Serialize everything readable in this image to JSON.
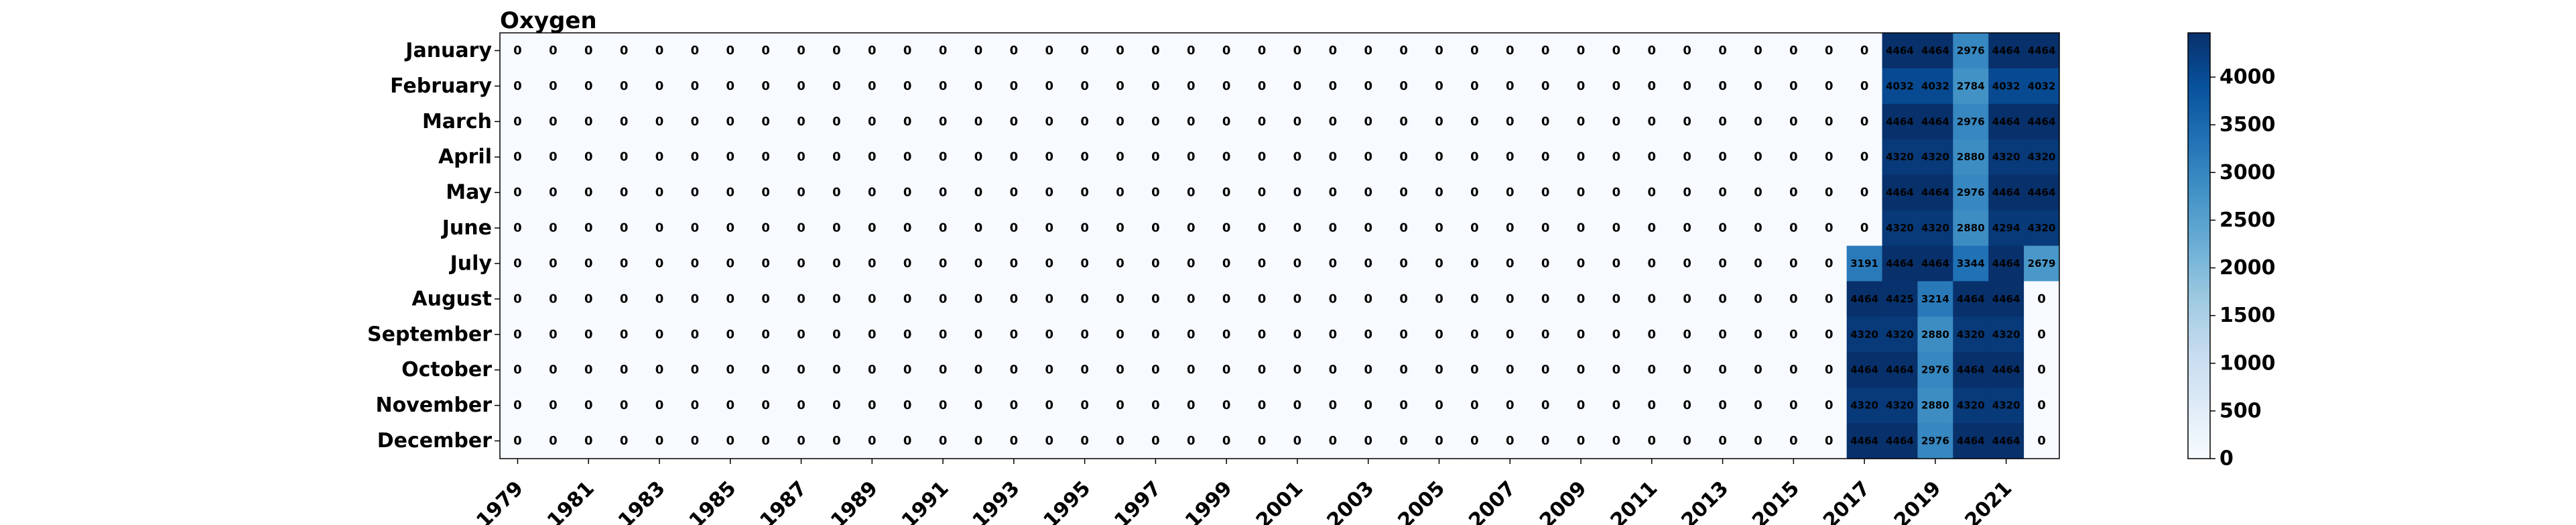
{
  "chart_data": {
    "type": "heatmap",
    "title": "Oxygen",
    "xlabel": "",
    "ylabel": "",
    "colormap": "Blues",
    "years": [
      1979,
      1980,
      1981,
      1982,
      1983,
      1984,
      1985,
      1986,
      1987,
      1988,
      1989,
      1990,
      1991,
      1992,
      1993,
      1994,
      1995,
      1996,
      1997,
      1998,
      1999,
      2000,
      2001,
      2002,
      2003,
      2004,
      2005,
      2006,
      2007,
      2008,
      2009,
      2010,
      2011,
      2012,
      2013,
      2014,
      2015,
      2016,
      2017,
      2018,
      2019,
      2020,
      2021,
      2022
    ],
    "x_tick_labels": [
      "1979",
      "1981",
      "1983",
      "1985",
      "1987",
      "1989",
      "1991",
      "1993",
      "1995",
      "1997",
      "1999",
      "2001",
      "2003",
      "2005",
      "2007",
      "2009",
      "2011",
      "2013",
      "2015",
      "2017",
      "2019",
      "2021"
    ],
    "months": [
      "January",
      "February",
      "March",
      "April",
      "May",
      "June",
      "July",
      "August",
      "September",
      "October",
      "November",
      "December"
    ],
    "values": [
      [
        0,
        0,
        0,
        0,
        0,
        0,
        0,
        0,
        0,
        0,
        0,
        0,
        0,
        0,
        0,
        0,
        0,
        0,
        0,
        0,
        0,
        0,
        0,
        0,
        0,
        0,
        0,
        0,
        0,
        0,
        0,
        0,
        0,
        0,
        0,
        0,
        0,
        0,
        0,
        4464,
        4464,
        2976,
        4464,
        4464
      ],
      [
        0,
        0,
        0,
        0,
        0,
        0,
        0,
        0,
        0,
        0,
        0,
        0,
        0,
        0,
        0,
        0,
        0,
        0,
        0,
        0,
        0,
        0,
        0,
        0,
        0,
        0,
        0,
        0,
        0,
        0,
        0,
        0,
        0,
        0,
        0,
        0,
        0,
        0,
        0,
        4032,
        4032,
        2784,
        4032,
        4032
      ],
      [
        0,
        0,
        0,
        0,
        0,
        0,
        0,
        0,
        0,
        0,
        0,
        0,
        0,
        0,
        0,
        0,
        0,
        0,
        0,
        0,
        0,
        0,
        0,
        0,
        0,
        0,
        0,
        0,
        0,
        0,
        0,
        0,
        0,
        0,
        0,
        0,
        0,
        0,
        0,
        4464,
        4464,
        2976,
        4464,
        4464
      ],
      [
        0,
        0,
        0,
        0,
        0,
        0,
        0,
        0,
        0,
        0,
        0,
        0,
        0,
        0,
        0,
        0,
        0,
        0,
        0,
        0,
        0,
        0,
        0,
        0,
        0,
        0,
        0,
        0,
        0,
        0,
        0,
        0,
        0,
        0,
        0,
        0,
        0,
        0,
        0,
        4320,
        4320,
        2880,
        4320,
        4320
      ],
      [
        0,
        0,
        0,
        0,
        0,
        0,
        0,
        0,
        0,
        0,
        0,
        0,
        0,
        0,
        0,
        0,
        0,
        0,
        0,
        0,
        0,
        0,
        0,
        0,
        0,
        0,
        0,
        0,
        0,
        0,
        0,
        0,
        0,
        0,
        0,
        0,
        0,
        0,
        0,
        4464,
        4464,
        2976,
        4464,
        4464
      ],
      [
        0,
        0,
        0,
        0,
        0,
        0,
        0,
        0,
        0,
        0,
        0,
        0,
        0,
        0,
        0,
        0,
        0,
        0,
        0,
        0,
        0,
        0,
        0,
        0,
        0,
        0,
        0,
        0,
        0,
        0,
        0,
        0,
        0,
        0,
        0,
        0,
        0,
        0,
        0,
        4320,
        4320,
        2880,
        4294,
        4320
      ],
      [
        0,
        0,
        0,
        0,
        0,
        0,
        0,
        0,
        0,
        0,
        0,
        0,
        0,
        0,
        0,
        0,
        0,
        0,
        0,
        0,
        0,
        0,
        0,
        0,
        0,
        0,
        0,
        0,
        0,
        0,
        0,
        0,
        0,
        0,
        0,
        0,
        0,
        0,
        3191,
        4464,
        4464,
        3344,
        4464,
        2679
      ],
      [
        0,
        0,
        0,
        0,
        0,
        0,
        0,
        0,
        0,
        0,
        0,
        0,
        0,
        0,
        0,
        0,
        0,
        0,
        0,
        0,
        0,
        0,
        0,
        0,
        0,
        0,
        0,
        0,
        0,
        0,
        0,
        0,
        0,
        0,
        0,
        0,
        0,
        0,
        4464,
        4425,
        3214,
        4464,
        4464,
        0
      ],
      [
        0,
        0,
        0,
        0,
        0,
        0,
        0,
        0,
        0,
        0,
        0,
        0,
        0,
        0,
        0,
        0,
        0,
        0,
        0,
        0,
        0,
        0,
        0,
        0,
        0,
        0,
        0,
        0,
        0,
        0,
        0,
        0,
        0,
        0,
        0,
        0,
        0,
        0,
        4320,
        4320,
        2880,
        4320,
        4320,
        0
      ],
      [
        0,
        0,
        0,
        0,
        0,
        0,
        0,
        0,
        0,
        0,
        0,
        0,
        0,
        0,
        0,
        0,
        0,
        0,
        0,
        0,
        0,
        0,
        0,
        0,
        0,
        0,
        0,
        0,
        0,
        0,
        0,
        0,
        0,
        0,
        0,
        0,
        0,
        0,
        4464,
        4464,
        2976,
        4464,
        4464,
        0
      ],
      [
        0,
        0,
        0,
        0,
        0,
        0,
        0,
        0,
        0,
        0,
        0,
        0,
        0,
        0,
        0,
        0,
        0,
        0,
        0,
        0,
        0,
        0,
        0,
        0,
        0,
        0,
        0,
        0,
        0,
        0,
        0,
        0,
        0,
        0,
        0,
        0,
        0,
        0,
        4320,
        4320,
        2880,
        4320,
        4320,
        0
      ],
      [
        0,
        0,
        0,
        0,
        0,
        0,
        0,
        0,
        0,
        0,
        0,
        0,
        0,
        0,
        0,
        0,
        0,
        0,
        0,
        0,
        0,
        0,
        0,
        0,
        0,
        0,
        0,
        0,
        0,
        0,
        0,
        0,
        0,
        0,
        0,
        0,
        0,
        0,
        4464,
        4464,
        2976,
        4464,
        4464,
        0
      ]
    ],
    "colorbar": {
      "vmin": 0,
      "vmax": 4464,
      "ticks": [
        0,
        500,
        1000,
        1500,
        2000,
        2500,
        3000,
        3500,
        4000
      ]
    },
    "grid": false,
    "legend": "none"
  }
}
